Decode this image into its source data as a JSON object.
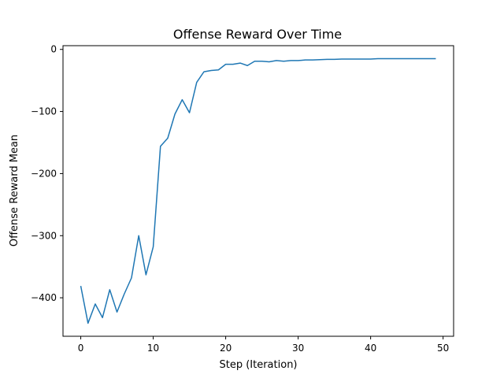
{
  "chart_data": {
    "type": "line",
    "title": "Offense Reward Over Time",
    "xlabel": "Step (Iteration)",
    "ylabel": "Offense Reward Mean",
    "xlim": [
      -2.45,
      51.45
    ],
    "ylim": [
      -462,
      6
    ],
    "xticks": [
      0,
      10,
      20,
      30,
      40,
      50
    ],
    "yticks": [
      0,
      -100,
      -200,
      -300,
      -400
    ],
    "ytick_labels": [
      "0",
      "−100",
      "−200",
      "−300",
      "−400"
    ],
    "grid": false,
    "series": [
      {
        "color": "#1f77b4",
        "x": [
          0,
          1,
          2,
          3,
          4,
          5,
          6,
          7,
          8,
          9,
          10,
          11,
          12,
          13,
          14,
          15,
          16,
          17,
          18,
          19,
          20,
          21,
          22,
          23,
          24,
          25,
          26,
          27,
          28,
          29,
          30,
          31,
          32,
          33,
          34,
          35,
          36,
          37,
          38,
          39,
          40,
          41,
          42,
          43,
          44,
          45,
          46,
          47,
          48,
          49
        ],
        "values": [
          -381,
          -441,
          -410,
          -432,
          -387,
          -423,
          -394,
          -368,
          -300,
          -363,
          -318,
          -156,
          -143,
          -104,
          -81,
          -102,
          -53,
          -36,
          -34,
          -33,
          -24,
          -24,
          -22,
          -26,
          -19,
          -19,
          -20,
          -18,
          -19,
          -18,
          -18,
          -17,
          -17,
          -16.5,
          -16,
          -16,
          -15.5,
          -15.5,
          -15.5,
          -15.5,
          -15.5,
          -15,
          -15,
          -15,
          -15,
          -15,
          -15,
          -15,
          -15,
          -15
        ]
      }
    ]
  }
}
